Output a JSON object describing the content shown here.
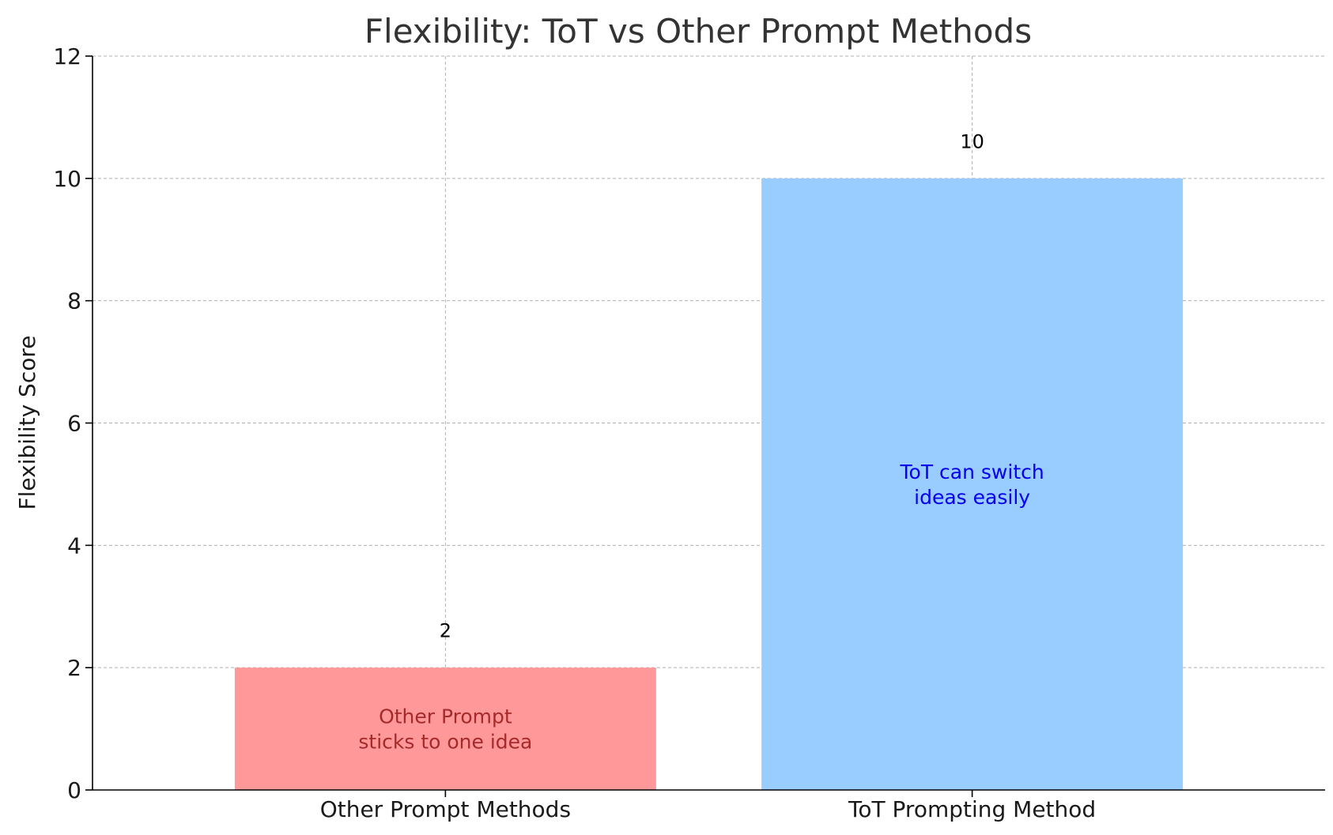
{
  "chart_data": {
    "type": "bar",
    "title": "Flexibility: ToT vs Other Prompt Methods",
    "xlabel": "",
    "ylabel": "Flexibility Score",
    "ylim": [
      0,
      12
    ],
    "yticks": [
      "0",
      "2",
      "4",
      "6",
      "8",
      "10",
      "12"
    ],
    "grid": true,
    "categories": [
      "Other Prompt Methods",
      "ToT Prompting Method"
    ],
    "values": [
      2,
      10
    ],
    "value_labels": [
      "2",
      "10"
    ],
    "bar_colors": [
      "#ff9999",
      "#99ccff"
    ],
    "annotations": [
      {
        "lines": [
          "Other Prompt",
          "sticks to one idea"
        ],
        "color": "#a52a2a"
      },
      {
        "lines": [
          "ToT can switch",
          "ideas easily"
        ],
        "color": "#0000ee"
      }
    ]
  }
}
